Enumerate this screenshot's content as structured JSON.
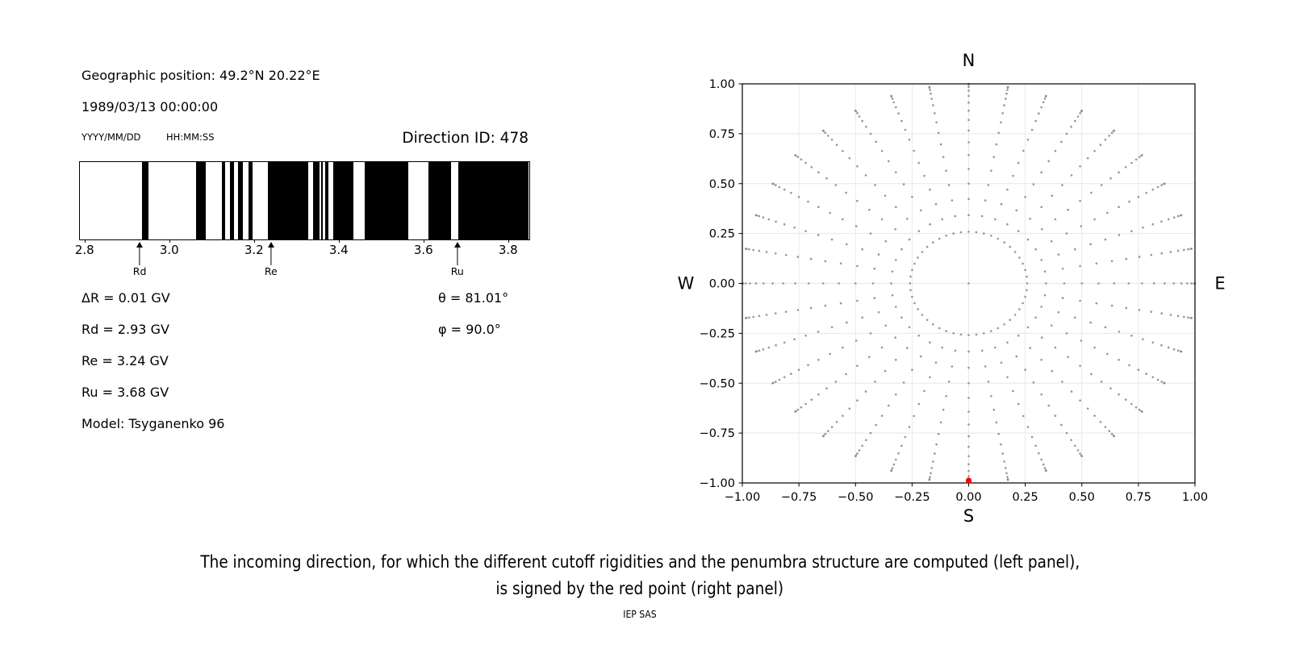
{
  "left_panel": {
    "geo_position": "Geographic position: 49.2°N 20.22°E",
    "datetime": "1989/03/13 00:00:00",
    "date_format_label": "YYYY/MM/DD",
    "time_format_label": "HH:MM:SS",
    "direction_id_label": "Direction ID: 478",
    "info_lines": [
      "ΔR = 0.01 GV",
      "Rd = 2.93 GV",
      "Re = 3.24 GV",
      "Ru = 3.68 GV",
      "Model: Tsyganenko 96"
    ],
    "angle_lines": [
      "θ = 81.01°",
      "φ = 90.0°"
    ]
  },
  "chart_data": [
    {
      "type": "barcode",
      "description": "penumbra structure: black = allowed rigidities, white = forbidden",
      "x_range_gv": [
        2.787,
        3.848
      ],
      "x_ticks": [
        2.8,
        3.0,
        3.2,
        3.4,
        3.6,
        3.8
      ],
      "x_tick_labels": [
        "2.8",
        "3.0",
        "3.2",
        "3.4",
        "3.6",
        "3.8"
      ],
      "black_bands_gv": [
        [
          2.935,
          2.95
        ],
        [
          3.063,
          3.087
        ],
        [
          3.124,
          3.131
        ],
        [
          3.144,
          3.152
        ],
        [
          3.163,
          3.173
        ],
        [
          3.186,
          3.197
        ],
        [
          3.233,
          3.328
        ],
        [
          3.34,
          3.354
        ],
        [
          3.359,
          3.363
        ],
        [
          3.367,
          3.375
        ],
        [
          3.387,
          3.435
        ],
        [
          3.462,
          3.565
        ],
        [
          3.611,
          3.665
        ],
        [
          3.683,
          3.848
        ]
      ],
      "markers": [
        {
          "label": "Rd",
          "gv": 2.93
        },
        {
          "label": "Re",
          "gv": 3.24
        },
        {
          "label": "Ru",
          "gv": 3.68
        }
      ],
      "values": {
        "delta_R_GV": 0.01,
        "Rd_GV": 2.93,
        "Re_GV": 3.24,
        "Ru_GV": 3.68,
        "model": "Tsyganenko 96",
        "theta_deg": 81.01,
        "phi_deg": 90.0,
        "direction_id": 478
      }
    },
    {
      "type": "scatter",
      "description": "grid of computed incoming directions; red point = selected direction",
      "x_range": [
        -1,
        1
      ],
      "y_range": [
        -1,
        1
      ],
      "x_ticks": [
        -1,
        -0.75,
        -0.5,
        -0.25,
        0,
        0.25,
        0.5,
        0.75,
        1
      ],
      "x_tick_labels": [
        "−1.00",
        "−0.75",
        "−0.50",
        "−0.25",
        "0.00",
        "0.25",
        "0.50",
        "0.75",
        "1.00"
      ],
      "y_ticks": [
        1,
        0.75,
        0.5,
        0.25,
        0,
        -0.25,
        -0.5,
        -0.75,
        -1
      ],
      "y_tick_labels": [
        "1.00",
        "0.75",
        "0.50",
        "0.25",
        "0.00",
        "−0.25",
        "−0.50",
        "−0.75",
        "−1.00"
      ],
      "compass": {
        "top": "N",
        "bottom": "S",
        "left": "W",
        "right": "E"
      },
      "grid": true,
      "grid_color": "#e7e7e7",
      "dot_color": "#8a8a8a",
      "dot_grid": {
        "radius_mapping": "sin(zenith)",
        "azimuth_step_deg": 10,
        "zenith_start_deg": 20,
        "zenith_end_deg": 90,
        "zenith_step_deg": 5,
        "inner_ring": {
          "radius": 0.2588,
          "count": 48
        },
        "center_dot": true
      },
      "red_point": {
        "x": 0.0,
        "y": -0.988,
        "color": "#ff0000"
      }
    }
  ],
  "caption": {
    "line1": "The incoming direction, for which the different cutoff rigidities and the penumbra structure are computed (left panel),",
    "line2": "is signed by the red point (right panel)",
    "credit": "IEP SAS"
  }
}
